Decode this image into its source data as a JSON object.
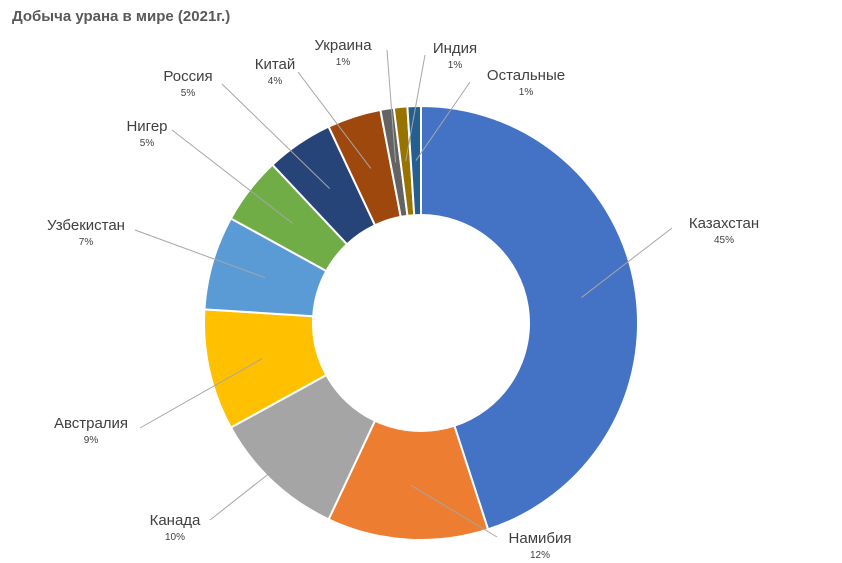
{
  "chart_data": {
    "type": "donut",
    "title": "Добыча урана в мире (2021г.)",
    "legend": "none",
    "slices": [
      {
        "name": "Казахстан",
        "value": 45,
        "label": "45%",
        "color": "#4472C4"
      },
      {
        "name": "Намибия",
        "value": 12,
        "label": "12%",
        "color": "#ED7D31"
      },
      {
        "name": "Канада",
        "value": 10,
        "label": "10%",
        "color": "#A5A5A5"
      },
      {
        "name": "Австралия",
        "value": 9,
        "label": "9%",
        "color": "#FFC000"
      },
      {
        "name": "Узбекистан",
        "value": 7,
        "label": "7%",
        "color": "#5B9BD5"
      },
      {
        "name": "Нигер",
        "value": 5,
        "label": "5%",
        "color": "#70AD47"
      },
      {
        "name": "Россия",
        "value": 5,
        "label": "5%",
        "color": "#264478"
      },
      {
        "name": "Китай",
        "value": 4,
        "label": "4%",
        "color": "#9E480E"
      },
      {
        "name": "Украина",
        "value": 1,
        "label": "1%",
        "color": "#636363"
      },
      {
        "name": "Индия",
        "value": 1,
        "label": "1%",
        "color": "#997300"
      },
      {
        "name": "Остальные",
        "value": 1,
        "label": "1%",
        "color": "#255E91"
      }
    ]
  }
}
